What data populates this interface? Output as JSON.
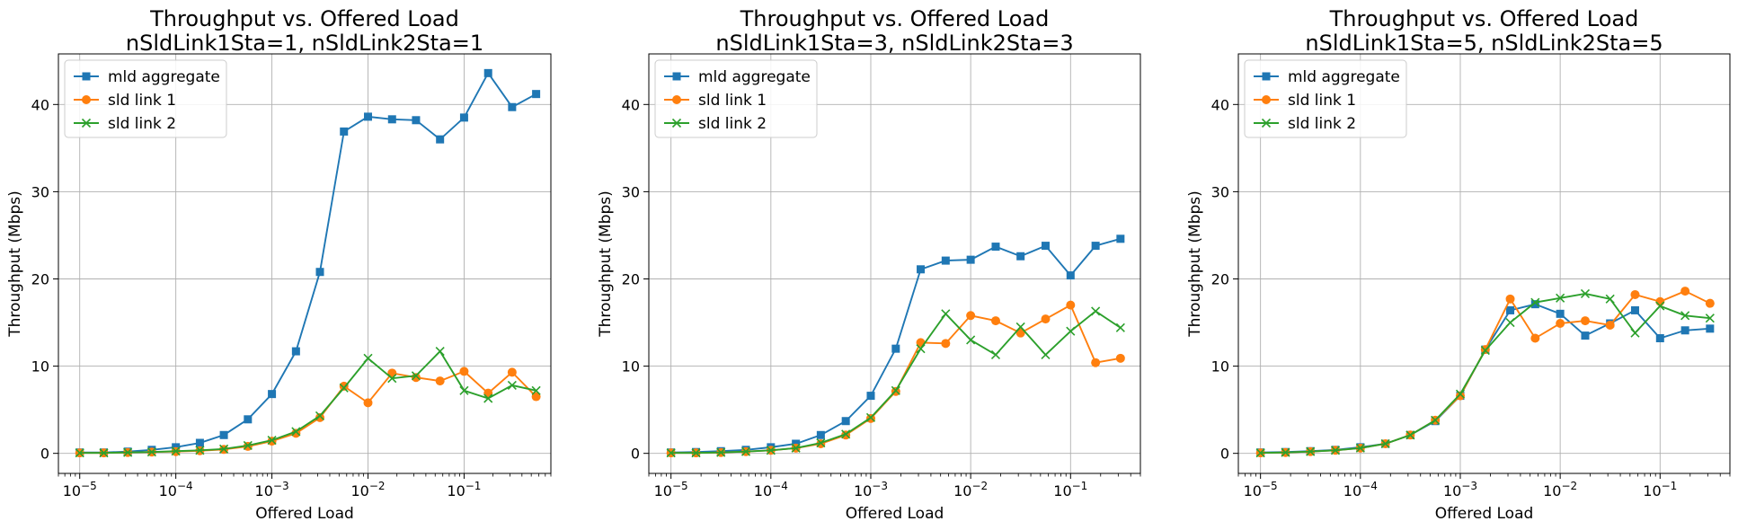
{
  "figure": {
    "colors": {
      "mld": "#1f77b4",
      "sld1": "#ff7f0e",
      "sld2": "#2ca02c"
    }
  },
  "chart_data": [
    {
      "type": "line",
      "title": "Throughput vs. Offered Load",
      "subtitle": "nSldLink1Sta=1, nSldLink2Sta=1",
      "xlabel": "Offered Load",
      "ylabel": "Throughput (Mbps)",
      "xscale": "log",
      "xlim": [
        6e-06,
        0.8
      ],
      "ylim": [
        -2.3,
        45.8
      ],
      "xticks": [
        {
          "exp": -5,
          "label": "10",
          "sup": "−5"
        },
        {
          "exp": -4,
          "label": "10",
          "sup": "−4"
        },
        {
          "exp": -3,
          "label": "10",
          "sup": "−3"
        },
        {
          "exp": -2,
          "label": "10",
          "sup": "−2"
        },
        {
          "exp": -1,
          "label": "10",
          "sup": "−1"
        }
      ],
      "yticks": [
        0,
        10,
        20,
        30,
        40
      ],
      "grid": true,
      "legend_position": "upper-left",
      "x": [
        1e-05,
        1.78e-05,
        3.16e-05,
        5.62e-05,
        0.0001,
        0.000178,
        0.000316,
        0.000562,
        0.001,
        0.00178,
        0.00316,
        0.00562,
        0.01,
        0.0178,
        0.0316,
        0.0562,
        0.1,
        0.178,
        0.316,
        0.562
      ],
      "series": [
        {
          "name": "mld aggregate",
          "marker": "square",
          "color": "#1f77b4",
          "values": [
            0.1,
            0.1,
            0.2,
            0.4,
            0.7,
            1.2,
            2.1,
            3.9,
            6.8,
            11.7,
            20.8,
            36.9,
            38.6,
            38.3,
            38.2,
            36.0,
            38.5,
            43.6,
            39.7,
            41.2
          ]
        },
        {
          "name": "sld link 1",
          "marker": "circle",
          "color": "#ff7f0e",
          "values": [
            0.05,
            0.05,
            0.1,
            0.15,
            0.2,
            0.3,
            0.45,
            0.8,
            1.4,
            2.3,
            4.1,
            7.7,
            5.8,
            9.2,
            8.7,
            8.3,
            9.4,
            6.9,
            9.3,
            6.5
          ]
        },
        {
          "name": "sld link 2",
          "marker": "x",
          "color": "#2ca02c",
          "values": [
            0.05,
            0.05,
            0.1,
            0.15,
            0.25,
            0.35,
            0.5,
            0.9,
            1.5,
            2.5,
            4.3,
            7.5,
            10.9,
            8.6,
            8.9,
            11.7,
            7.2,
            6.3,
            7.8,
            7.2
          ]
        }
      ]
    },
    {
      "type": "line",
      "title": "Throughput vs. Offered Load",
      "subtitle": "nSldLink1Sta=3, nSldLink2Sta=3",
      "xlabel": "Offered Load",
      "ylabel": "Throughput (Mbps)",
      "xscale": "log",
      "xlim": [
        6e-06,
        0.5
      ],
      "ylim": [
        -2.3,
        45.8
      ],
      "xticks": [
        {
          "exp": -5,
          "label": "10",
          "sup": "−5"
        },
        {
          "exp": -4,
          "label": "10",
          "sup": "−4"
        },
        {
          "exp": -3,
          "label": "10",
          "sup": "−3"
        },
        {
          "exp": -2,
          "label": "10",
          "sup": "−2"
        },
        {
          "exp": -1,
          "label": "10",
          "sup": "−1"
        }
      ],
      "yticks": [
        0,
        10,
        20,
        30,
        40
      ],
      "grid": true,
      "legend_position": "upper-left",
      "x": [
        1e-05,
        1.78e-05,
        3.16e-05,
        5.62e-05,
        0.0001,
        0.000178,
        0.000316,
        0.000562,
        0.001,
        0.00178,
        0.00316,
        0.00562,
        0.01,
        0.0178,
        0.0316,
        0.0562,
        0.1,
        0.178,
        0.316
      ],
      "series": [
        {
          "name": "mld aggregate",
          "marker": "square",
          "color": "#1f77b4",
          "values": [
            0.1,
            0.15,
            0.25,
            0.4,
            0.7,
            1.1,
            2.1,
            3.7,
            6.6,
            12.0,
            21.1,
            22.1,
            22.2,
            23.7,
            22.6,
            23.8,
            20.4,
            23.8,
            24.6
          ]
        },
        {
          "name": "sld link 1",
          "marker": "circle",
          "color": "#ff7f0e",
          "values": [
            0.05,
            0.05,
            0.1,
            0.2,
            0.35,
            0.6,
            1.1,
            2.1,
            4.0,
            7.1,
            12.7,
            12.6,
            15.8,
            15.2,
            13.8,
            15.4,
            17.0,
            10.4,
            10.9
          ]
        },
        {
          "name": "sld link 2",
          "marker": "x",
          "color": "#2ca02c",
          "values": [
            0.05,
            0.05,
            0.1,
            0.2,
            0.35,
            0.6,
            1.2,
            2.2,
            4.1,
            7.2,
            12.0,
            16.0,
            13.0,
            11.3,
            14.5,
            11.3,
            14.0,
            16.3,
            14.4
          ]
        }
      ]
    },
    {
      "type": "line",
      "title": "Throughput vs. Offered Load",
      "subtitle": "nSldLink1Sta=5, nSldLink2Sta=5",
      "xlabel": "Offered Load",
      "ylabel": "Throughput (Mbps)",
      "xscale": "log",
      "xlim": [
        6e-06,
        0.5
      ],
      "ylim": [
        -2.3,
        45.8
      ],
      "xticks": [
        {
          "exp": -5,
          "label": "10",
          "sup": "−5"
        },
        {
          "exp": -4,
          "label": "10",
          "sup": "−4"
        },
        {
          "exp": -3,
          "label": "10",
          "sup": "−3"
        },
        {
          "exp": -2,
          "label": "10",
          "sup": "−2"
        },
        {
          "exp": -1,
          "label": "10",
          "sup": "−1"
        }
      ],
      "yticks": [
        0,
        10,
        20,
        30,
        40
      ],
      "grid": true,
      "legend_position": "upper-left",
      "x": [
        1e-05,
        1.78e-05,
        3.16e-05,
        5.62e-05,
        0.0001,
        0.000178,
        0.000316,
        0.000562,
        0.001,
        0.00178,
        0.00316,
        0.00562,
        0.01,
        0.0178,
        0.0316,
        0.0562,
        0.1,
        0.178,
        0.316
      ],
      "series": [
        {
          "name": "mld aggregate",
          "marker": "square",
          "color": "#1f77b4",
          "values": [
            0.1,
            0.15,
            0.25,
            0.4,
            0.7,
            1.1,
            2.1,
            3.7,
            6.6,
            11.9,
            16.4,
            17.1,
            16.0,
            13.5,
            14.9,
            16.4,
            13.2,
            14.1,
            14.3
          ]
        },
        {
          "name": "sld link 1",
          "marker": "circle",
          "color": "#ff7f0e",
          "values": [
            0.05,
            0.1,
            0.2,
            0.35,
            0.6,
            1.1,
            2.1,
            3.8,
            6.6,
            11.9,
            17.7,
            13.2,
            14.9,
            15.2,
            14.7,
            18.2,
            17.4,
            18.6,
            17.2
          ]
        },
        {
          "name": "sld link 2",
          "marker": "x",
          "color": "#2ca02c",
          "values": [
            0.05,
            0.1,
            0.2,
            0.35,
            0.6,
            1.1,
            2.1,
            3.8,
            6.8,
            11.8,
            15.0,
            17.3,
            17.8,
            18.3,
            17.7,
            13.8,
            16.9,
            15.8,
            15.5
          ]
        }
      ]
    }
  ]
}
